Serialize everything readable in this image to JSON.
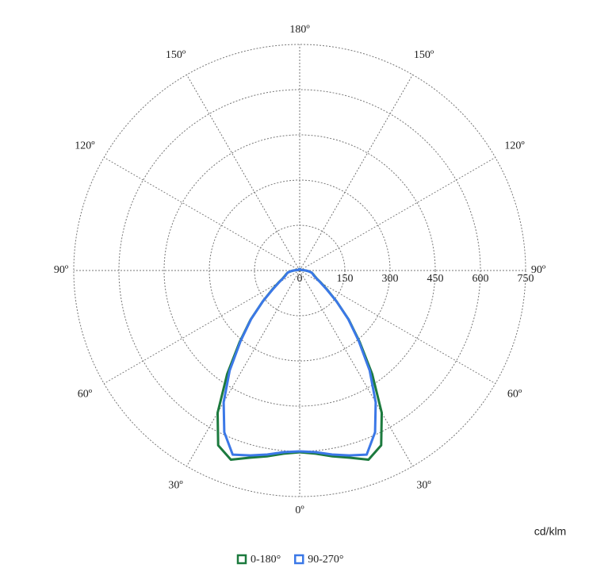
{
  "chart_data": {
    "type": "polar",
    "unit": "cd/klm",
    "rlim": [
      0,
      750
    ],
    "rticks": [
      0,
      150,
      300,
      450,
      600,
      750
    ],
    "thetaticks": [
      {
        "value": 0,
        "label": "0º"
      },
      {
        "value": 30,
        "label": "30º"
      },
      {
        "value": 60,
        "label": "60º"
      },
      {
        "value": 90,
        "label": "90º"
      },
      {
        "value": 120,
        "label": "120º"
      },
      {
        "value": 150,
        "label": "150º"
      },
      {
        "value": 180,
        "label": "180º"
      }
    ],
    "x": [
      0,
      5,
      10,
      15,
      20,
      25,
      30,
      35,
      40,
      45,
      50,
      55,
      60,
      65,
      70,
      75,
      80,
      85,
      90,
      95,
      100,
      110,
      120,
      135,
      150,
      165,
      180
    ],
    "series": [
      {
        "name": "0-180°",
        "color": "#1c7a3e",
        "values": [
          603,
          610,
          626,
          643,
          668,
          640,
          545,
          420,
          310,
          230,
          160,
          112,
          82,
          62,
          52,
          46,
          40,
          30,
          20,
          12,
          8,
          5,
          5,
          5,
          5,
          5,
          5
        ]
      },
      {
        "name": "90-270°",
        "color": "#3b78e7",
        "values": [
          600,
          605,
          620,
          635,
          650,
          592,
          505,
          405,
          305,
          228,
          160,
          110,
          80,
          60,
          50,
          45,
          40,
          30,
          20,
          12,
          8,
          5,
          5,
          5,
          5,
          5,
          5
        ]
      }
    ],
    "grid": true
  }
}
